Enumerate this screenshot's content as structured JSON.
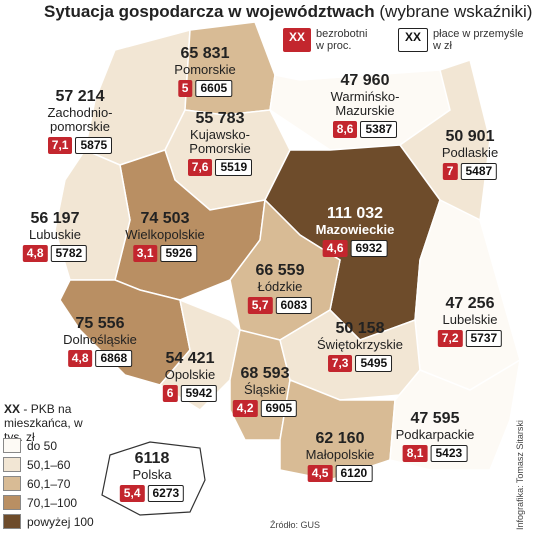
{
  "title": "Sytuacja gospodarcza w województwach",
  "subtitle": "(wybrane wskaźniki)",
  "key": {
    "unemployment_box": "XX",
    "unemployment_label": "bezrobotni w proc.",
    "wage_box": "XX",
    "wage_label": "płace w przemyśle w zł",
    "gdp_box": "XX",
    "gdp_label": "- PKB na mieszkańca, w tys. zł"
  },
  "classes": [
    {
      "label": "do 50",
      "color": "#fdfaf5"
    },
    {
      "label": "50,1–60",
      "color": "#f2e6d4"
    },
    {
      "label": "60,1–70",
      "color": "#d8bb95"
    },
    {
      "label": "70,1–100",
      "color": "#b98f63"
    },
    {
      "label": "powyżej 100",
      "color": "#6e4c2b"
    }
  ],
  "regions": [
    {
      "name": "Zachodnio-pomorskie",
      "gdp": "57 214",
      "unemployment": "7,1",
      "wage": "5875",
      "class": 1
    },
    {
      "name": "Pomorskie",
      "gdp": "65 831",
      "unemployment": "5",
      "wage": "6605",
      "class": 2
    },
    {
      "name": "Warmińsko-Mazurskie",
      "gdp": "47 960",
      "unemployment": "8,6",
      "wage": "5387",
      "class": 0
    },
    {
      "name": "Podlaskie",
      "gdp": "50 901",
      "unemployment": "7",
      "wage": "5487",
      "class": 1
    },
    {
      "name": "Kujawsko-Pomorskie",
      "gdp": "55 783",
      "unemployment": "7,6",
      "wage": "5519",
      "class": 1
    },
    {
      "name": "Wielkopolskie",
      "gdp": "74 503",
      "unemployment": "3,1",
      "wage": "5926",
      "class": 3
    },
    {
      "name": "Lubuskie",
      "gdp": "56 197",
      "unemployment": "4,8",
      "wage": "5782",
      "class": 1
    },
    {
      "name": "Mazowieckie",
      "gdp": "111 032",
      "unemployment": "4,6",
      "wage": "6932",
      "class": 4
    },
    {
      "name": "Łódzkie",
      "gdp": "66 559",
      "unemployment": "5,7",
      "wage": "6083",
      "class": 2
    },
    {
      "name": "Lubelskie",
      "gdp": "47 256",
      "unemployment": "7,2",
      "wage": "5737",
      "class": 0
    },
    {
      "name": "Dolnośląskie",
      "gdp": "75 556",
      "unemployment": "4,8",
      "wage": "6868",
      "class": 3
    },
    {
      "name": "Opolskie",
      "gdp": "54 421",
      "unemployment": "6",
      "wage": "5942",
      "class": 1
    },
    {
      "name": "Śląskie",
      "gdp": "68 593",
      "unemployment": "4,2",
      "wage": "6905",
      "class": 2
    },
    {
      "name": "Świętokrzyskie",
      "gdp": "50 158",
      "unemployment": "7,3",
      "wage": "5495",
      "class": 1
    },
    {
      "name": "Małopolskie",
      "gdp": "62 160",
      "unemployment": "4,5",
      "wage": "6120",
      "class": 2
    },
    {
      "name": "Podkarpackie",
      "gdp": "47 595",
      "unemployment": "8,1",
      "wage": "5423",
      "class": 0
    }
  ],
  "poland": {
    "name": "Polska",
    "gdp": "6118",
    "unemployment": "5,4",
    "wage": "6273"
  },
  "source": "Źródło: GUS",
  "credit": "Infografika: Tomasz Sitarski"
}
